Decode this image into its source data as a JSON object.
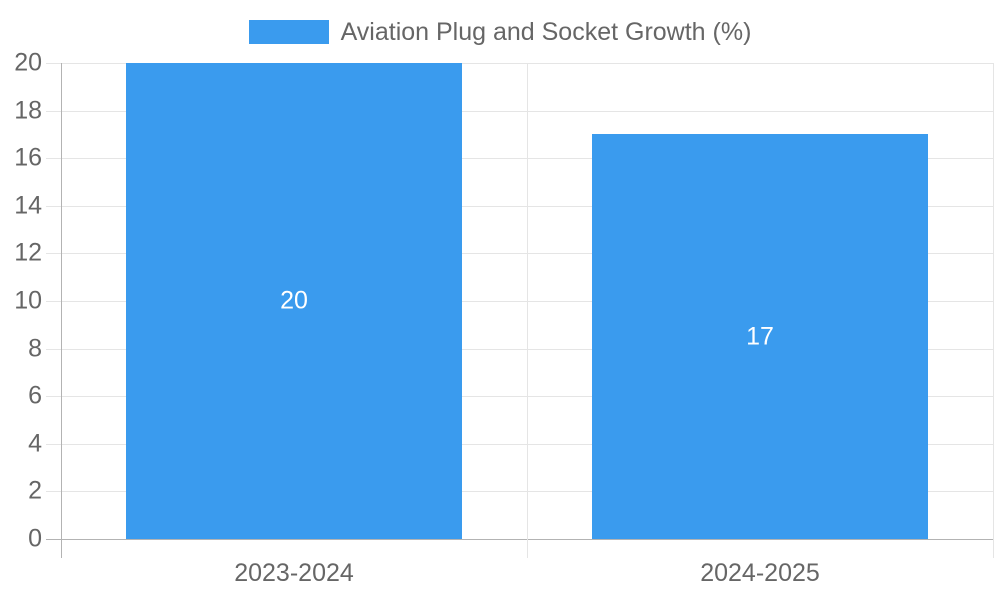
{
  "legend": {
    "label": "Aviation Plug and Socket Growth (%)"
  },
  "chart_data": {
    "type": "bar",
    "title": "Aviation Plug and Socket Growth (%)",
    "categories": [
      "2023-2024",
      "2024-2025"
    ],
    "values": [
      20,
      17
    ],
    "data_labels": [
      "20",
      "17"
    ],
    "yticks": [
      0,
      2,
      4,
      6,
      8,
      10,
      12,
      14,
      16,
      18,
      20
    ],
    "ylim": [
      0,
      20
    ],
    "ytick_step": 2,
    "grid": true,
    "legend_position": "top",
    "colors": {
      "bar": "#3A9BEE",
      "gridline": "#E5E5E5",
      "axis_line": "#B3B3B3",
      "text": "#666666",
      "data_label": "#FFFFFF",
      "background": "#FFFFFF"
    }
  }
}
